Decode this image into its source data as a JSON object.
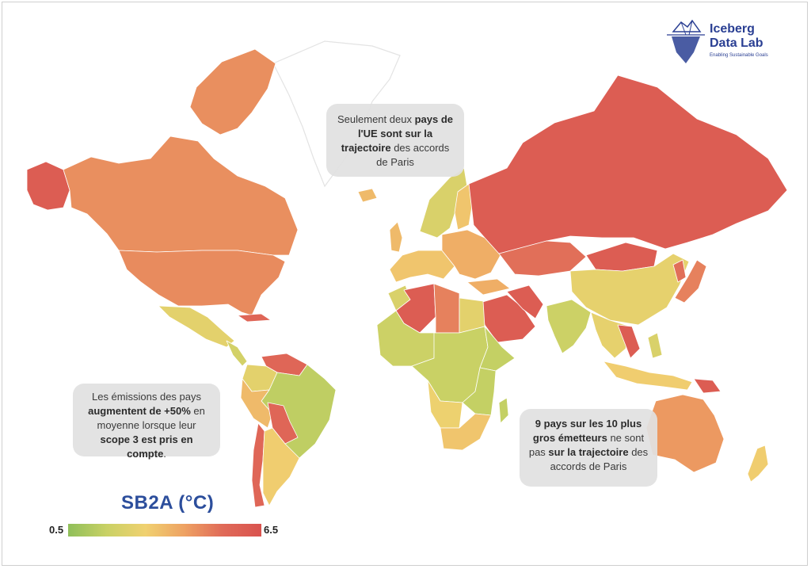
{
  "colors": {
    "scale": [
      "#8fbf5a",
      "#c9d165",
      "#f0d170",
      "#eea263",
      "#e06a58",
      "#d9534f"
    ],
    "low": "#8fbf5a",
    "high": "#d9534f",
    "brand": "#2a3f93",
    "legend_title": "#2c4e9c"
  },
  "logo": {
    "title": "Iceberg\nData Lab",
    "tagline": "Enabling Sustainable Goals",
    "icon": "iceberg-icon"
  },
  "callouts": {
    "eu": {
      "parts": [
        {
          "text": "Seulement deux ",
          "bold": false
        },
        {
          "text": "pays de l'UE sont sur la trajectoire",
          "bold": true
        },
        {
          "text": " des accords de Paris",
          "bold": false
        }
      ]
    },
    "scope": {
      "parts": [
        {
          "text": "Les émissions des pays ",
          "bold": false
        },
        {
          "text": "augmentent de +50%",
          "bold": true
        },
        {
          "text": " en moyenne lorsque leur ",
          "bold": false
        },
        {
          "text": "scope 3 est pris en compte",
          "bold": true
        },
        {
          "text": ".",
          "bold": false
        }
      ]
    },
    "emitters": {
      "parts": [
        {
          "text": "9 pays sur les 10 plus gros émetteurs",
          "bold": true
        },
        {
          "text": " ne sont pas ",
          "bold": false
        },
        {
          "text": "sur la trajectoire",
          "bold": true
        },
        {
          "text": " des accords de Paris",
          "bold": false
        }
      ]
    }
  },
  "legend": {
    "title": "SB2A (°C)",
    "min": "0.5",
    "max": "6.5",
    "range": [
      0.5,
      6.5
    ]
  },
  "regions": [
    {
      "id": "alaska",
      "value": 6.0
    },
    {
      "id": "canada",
      "value": 4.5
    },
    {
      "id": "canada-islands",
      "value": 4.5
    },
    {
      "id": "greenland",
      "value": null
    },
    {
      "id": "usa",
      "value": 4.6
    },
    {
      "id": "mexico",
      "value": 2.5
    },
    {
      "id": "central-america",
      "value": 2.0
    },
    {
      "id": "cuba",
      "value": 5.5
    },
    {
      "id": "venezuela",
      "value": 5.5
    },
    {
      "id": "colombia",
      "value": 2.5
    },
    {
      "id": "brazil",
      "value": 1.5
    },
    {
      "id": "peru",
      "value": 3.5
    },
    {
      "id": "bolivia",
      "value": 5.5
    },
    {
      "id": "chile",
      "value": 5.5
    },
    {
      "id": "argentina",
      "value": 3.0
    },
    {
      "id": "iceland",
      "value": 3.5
    },
    {
      "id": "uk",
      "value": 3.5
    },
    {
      "id": "scandinavia",
      "value": 2.2
    },
    {
      "id": "finland",
      "value": 3.2
    },
    {
      "id": "western-europe",
      "value": 3.2
    },
    {
      "id": "eastern-europe",
      "value": 3.8
    },
    {
      "id": "turkey",
      "value": 3.8
    },
    {
      "id": "russia",
      "value": 6.0
    },
    {
      "id": "kazakhstan",
      "value": 5.2
    },
    {
      "id": "mongolia",
      "value": 6.0
    },
    {
      "id": "china",
      "value": 2.6
    },
    {
      "id": "korea",
      "value": 5.2
    },
    {
      "id": "japan",
      "value": 4.8
    },
    {
      "id": "middle-east",
      "value": 6.0
    },
    {
      "id": "iran",
      "value": 6.0
    },
    {
      "id": "india",
      "value": 1.8
    },
    {
      "id": "southeast-asia",
      "value": 2.6
    },
    {
      "id": "vietnam",
      "value": 6.0
    },
    {
      "id": "indonesia",
      "value": 3.0
    },
    {
      "id": "philippines",
      "value": 2.2
    },
    {
      "id": "papua",
      "value": 6.0
    },
    {
      "id": "australia",
      "value": 4.3
    },
    {
      "id": "new-zealand",
      "value": 3.0
    },
    {
      "id": "morocco",
      "value": 2.2
    },
    {
      "id": "algeria",
      "value": 6.0
    },
    {
      "id": "libya",
      "value": 4.8
    },
    {
      "id": "egypt",
      "value": 2.5
    },
    {
      "id": "west-africa",
      "value": 1.8
    },
    {
      "id": "central-africa",
      "value": 1.7
    },
    {
      "id": "ethiopia",
      "value": 1.6
    },
    {
      "id": "east-africa",
      "value": 1.6
    },
    {
      "id": "angola",
      "value": 2.8
    },
    {
      "id": "south-africa",
      "value": 3.2
    },
    {
      "id": "madagascar",
      "value": 1.6
    }
  ]
}
